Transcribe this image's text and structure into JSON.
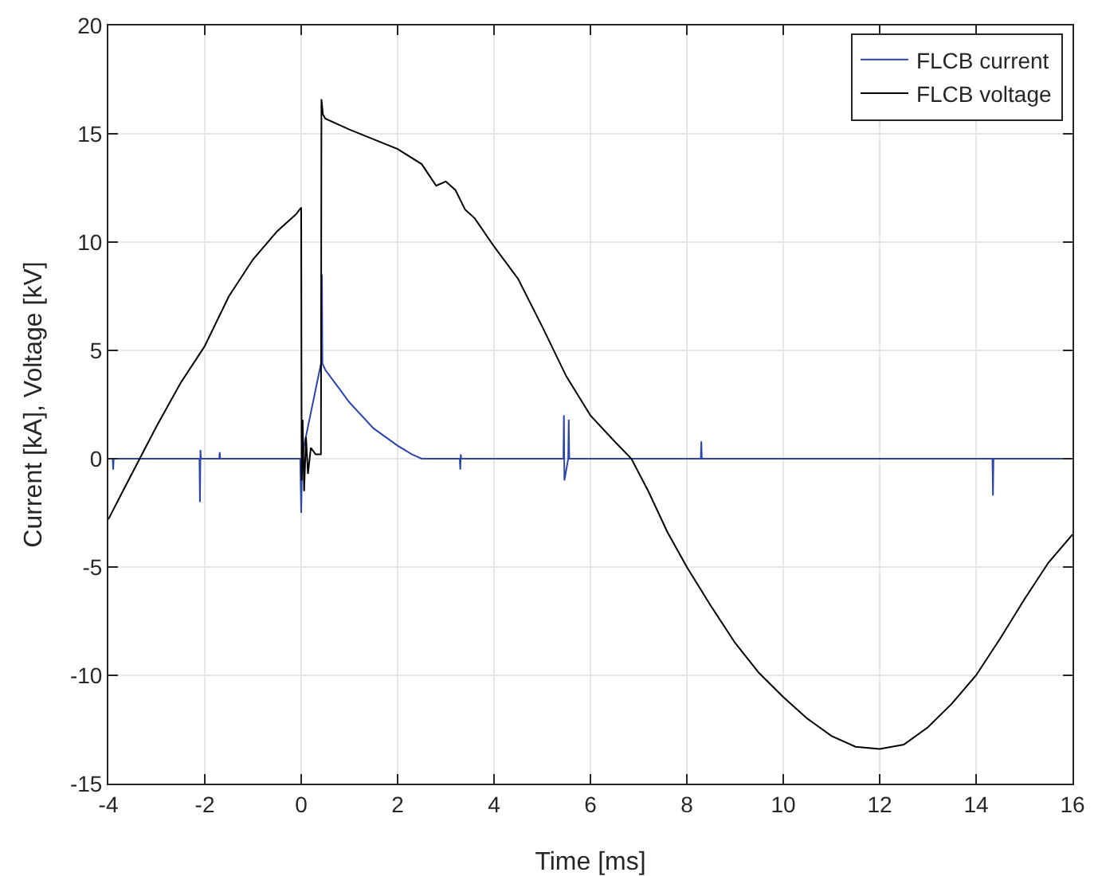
{
  "chart_data": {
    "type": "line",
    "xlabel": "Time [ms]",
    "ylabel": "Current [kA], Voltage [kV]",
    "xlim": [
      -4,
      16
    ],
    "ylim": [
      -15,
      20
    ],
    "xticks": [
      -4,
      -2,
      0,
      2,
      4,
      6,
      8,
      10,
      12,
      14,
      16
    ],
    "yticks": [
      -15,
      -10,
      -5,
      0,
      5,
      10,
      15,
      20
    ],
    "grid": true,
    "legend": "top right",
    "marker": "none",
    "line_style": "solid",
    "series": [
      {
        "name": "FLCB current",
        "color": "#2b45a8",
        "x": [
          -4,
          -3.91,
          -3.9,
          -3.89,
          -2.11,
          -2.1,
          -2.09,
          -2.08,
          -2.07,
          -1.7,
          -1.69,
          -1.68,
          -0.02,
          0,
          0.02,
          0.05,
          0.42,
          0.43,
          0.44,
          0.46,
          0.5,
          0.8,
          1,
          1.5,
          2,
          2.3,
          2.5,
          3.29,
          3.3,
          3.31,
          3.32,
          5.3,
          5.44,
          5.45,
          5.46,
          5.54,
          5.55,
          5.56,
          8.29,
          8.3,
          8.31,
          14.34,
          14.35,
          14.36,
          16
        ],
        "values": [
          0,
          0,
          -0.5,
          0,
          0,
          -2,
          0.4,
          0,
          0,
          0,
          0.3,
          0,
          0,
          -2.5,
          0,
          0.5,
          4.5,
          8.5,
          4.4,
          4.3,
          4.1,
          3.2,
          2.6,
          1.4,
          0.6,
          0.2,
          0,
          0,
          -0.5,
          0.2,
          0,
          0,
          0,
          2,
          -1,
          0,
          1.8,
          0,
          0,
          0.8,
          0,
          0,
          -1.7,
          0,
          0
        ]
      },
      {
        "name": "FLCB voltage",
        "color": "#000000",
        "x": [
          -4,
          -3.7,
          -3.35,
          -3,
          -2.5,
          -2,
          -1.5,
          -1,
          -0.5,
          -0.3,
          -0.1,
          0,
          0.01,
          0.03,
          0.06,
          0.1,
          0.14,
          0.2,
          0.3,
          0.41,
          0.42,
          0.45,
          0.5,
          1,
          2,
          2.5,
          2.8,
          3,
          3.2,
          3.4,
          3.6,
          4,
          4.5,
          5,
          5.5,
          6,
          6.5,
          6.85,
          7.2,
          7.6,
          8,
          8.5,
          9,
          9.5,
          10,
          10.5,
          11,
          11.5,
          12,
          12.5,
          13,
          13.5,
          14,
          14.5,
          15,
          15.5,
          16
        ],
        "values": [
          -2.8,
          -1.5,
          0,
          1.5,
          3.5,
          5.2,
          7.5,
          9.2,
          10.5,
          10.9,
          11.3,
          11.6,
          -1,
          1.8,
          -1.5,
          1,
          -0.7,
          0.5,
          0.2,
          0.2,
          16.6,
          15.9,
          15.7,
          15.2,
          14.3,
          13.6,
          12.6,
          12.8,
          12.4,
          11.5,
          11.1,
          9.8,
          8.3,
          6.1,
          3.8,
          2,
          0.8,
          0,
          -1.5,
          -3.4,
          -5,
          -6.8,
          -8.5,
          -9.9,
          -11,
          -12,
          -12.8,
          -13.3,
          -13.4,
          -13.2,
          -12.4,
          -11.3,
          -10,
          -8.3,
          -6.5,
          -4.8,
          -3.5
        ]
      }
    ]
  }
}
